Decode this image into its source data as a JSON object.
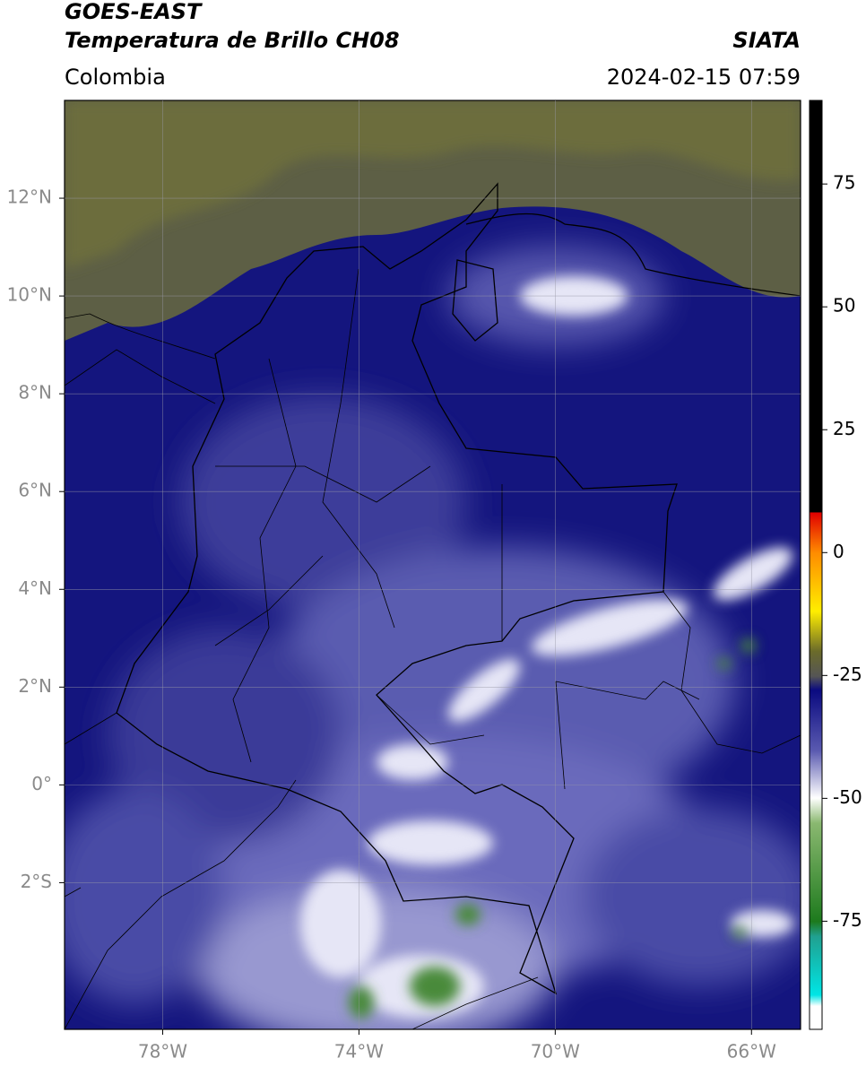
{
  "header": {
    "title": "GOES-EAST",
    "subtitle": "Temperatura de Brillo CH08",
    "source": "SIATA",
    "region": "Colombia",
    "datetime": "2024-02-15 07:59"
  },
  "map": {
    "xlim": [
      -80,
      -65
    ],
    "ylim": [
      -5,
      14
    ],
    "xticks": [
      {
        "value": -78,
        "label": "78°W"
      },
      {
        "value": -74,
        "label": "74°W"
      },
      {
        "value": -70,
        "label": "70°W"
      },
      {
        "value": -66,
        "label": "66°W"
      }
    ],
    "yticks": [
      {
        "value": 12,
        "label": "12°N"
      },
      {
        "value": 10,
        "label": "10°N"
      },
      {
        "value": 8,
        "label": "8°N"
      },
      {
        "value": 6,
        "label": "6°N"
      },
      {
        "value": 4,
        "label": "4°N"
      },
      {
        "value": 2,
        "label": "2°N"
      },
      {
        "value": 0,
        "label": "0°"
      },
      {
        "value": -2,
        "label": "2°S"
      }
    ],
    "grid": true
  },
  "colorbar": {
    "lim": [
      -97,
      92
    ],
    "ticks": [
      75,
      50,
      25,
      0,
      -25,
      -50,
      -75
    ]
  }
}
